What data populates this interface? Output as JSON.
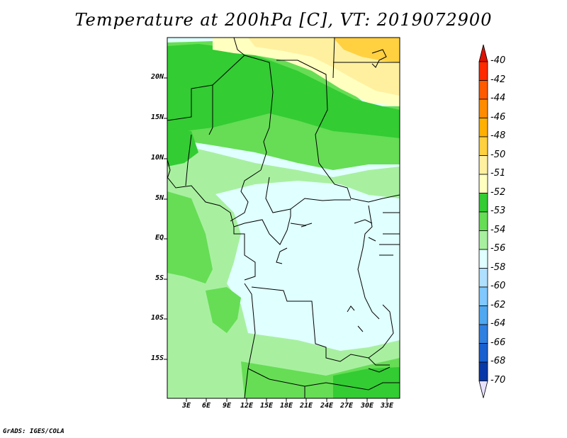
{
  "title": "Temperature at 200hPa [C], VT: 2019072900",
  "credit": "GrADS: IGES/COLA",
  "map": {
    "lat_labels": [
      "20N",
      "15N",
      "10N",
      "5N",
      "EQ",
      "5S",
      "10S",
      "15S"
    ],
    "lon_labels": [
      "3E",
      "6E",
      "9E",
      "12E",
      "15E",
      "18E",
      "21E",
      "24E",
      "27E",
      "30E",
      "33E"
    ]
  },
  "colorbar": {
    "labels": [
      "-40",
      "-42",
      "-44",
      "-46",
      "-48",
      "-50",
      "-51",
      "-52",
      "-53",
      "-54",
      "-56",
      "-58",
      "-60",
      "-62",
      "-64",
      "-66",
      "-68",
      "-70"
    ],
    "colors": [
      "#ff2a00",
      "#ff5a00",
      "#ff8c00",
      "#ffb000",
      "#ffd040",
      "#fff0a0",
      "#ffffc0",
      "#33cc33",
      "#66dd55",
      "#a8f0a0",
      "#e0ffff",
      "#b0e0ff",
      "#80c8ff",
      "#50a8f0",
      "#3080e0",
      "#1860d0",
      "#0838a8",
      "#000870"
    ],
    "top_tip_color": "#dd1100",
    "bottom_tip_color": "#e8e0ff"
  }
}
